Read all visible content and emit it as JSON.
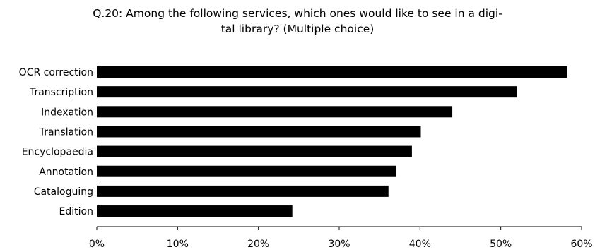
{
  "chart_data": {
    "type": "bar",
    "orientation": "horizontal",
    "title_lines": [
      "Q.20: Among the following services, which ones would like to see in a digi-",
      "tal library? (Multiple choice)"
    ],
    "categories": [
      "OCR correction",
      "Transcription",
      "Indexation",
      "Translation",
      "Encyclopaedia",
      "Annotation",
      "Cataloguing",
      "Edition"
    ],
    "values": [
      58.2,
      52,
      44,
      40.1,
      39,
      37,
      36.1,
      24.2
    ],
    "xlabel": "",
    "ylabel": "",
    "xlim": [
      0,
      60
    ],
    "x_ticks": [
      0,
      10,
      20,
      30,
      40,
      50,
      60
    ],
    "x_tick_labels": [
      "0%",
      "10%",
      "20%",
      "30%",
      "40%",
      "50%",
      "60%"
    ],
    "grid": false,
    "legend": "none",
    "bar_color": "#000000"
  }
}
